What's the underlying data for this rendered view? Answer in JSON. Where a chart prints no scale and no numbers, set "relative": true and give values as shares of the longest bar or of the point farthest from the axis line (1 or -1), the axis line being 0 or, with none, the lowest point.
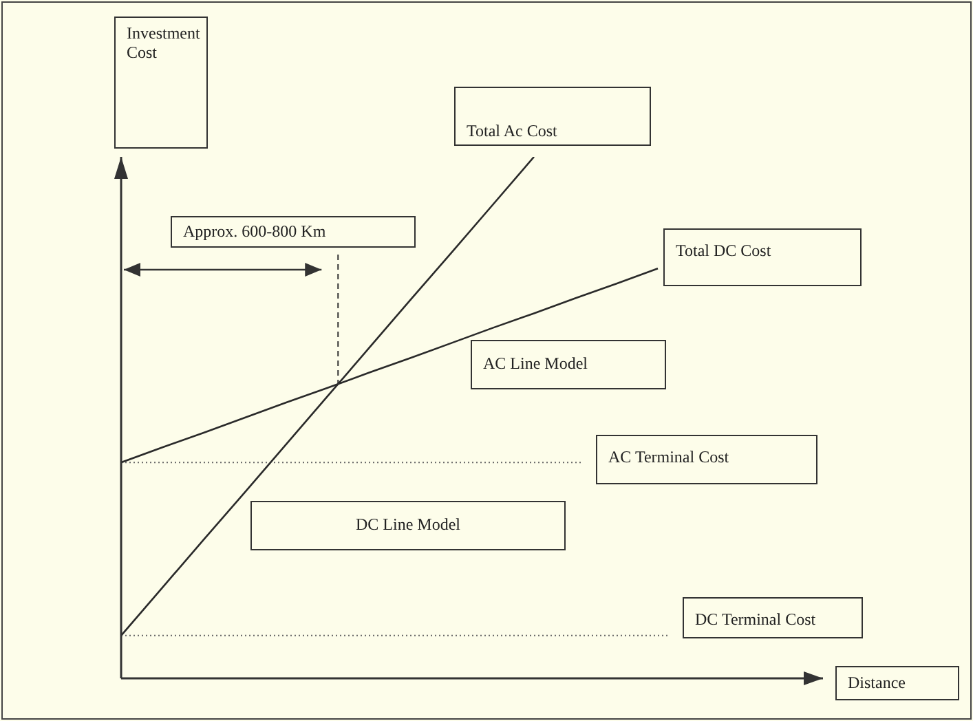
{
  "chart_data": {
    "type": "line",
    "relative": true,
    "tick_labels": false,
    "grid": false,
    "legend": false,
    "marker": "none",
    "line_style": "solid",
    "categories": [
      null,
      null,
      null,
      null,
      null,
      null,
      null,
      null,
      null,
      null,
      null,
      null,
      null,
      null
    ],
    "series": [
      {
        "name": "Total Ac Cost",
        "color": "#2a2a2a",
        "values": [
          0.082,
          0.174,
          0.266,
          0.357,
          0.449,
          0.541,
          0.633,
          0.725,
          0.816,
          0.908,
          1,
          null,
          null,
          null
        ]
      },
      {
        "name": "Total DC Cost",
        "color": "#2a2a2a",
        "values": [
          0.414,
          0.443,
          0.471,
          0.5,
          0.529,
          0.557,
          0.586,
          0.614,
          0.643,
          0.672,
          0.7,
          0.729,
          0.757,
          0.786
        ]
      }
    ],
    "ref_lines": [
      {
        "axis": "y",
        "value": 0.414,
        "label": "AC Terminal Cost",
        "color": "#666666",
        "line_style": "dotted"
      },
      {
        "axis": "y",
        "value": 0.082,
        "label": "DC Terminal Cost",
        "color": "#666666",
        "line_style": "dotted"
      }
    ],
    "annotations": [
      "AC Line Model",
      "DC Line Model",
      "Approx. 600-800 Km",
      "Investment Cost",
      "Distance"
    ]
  }
}
